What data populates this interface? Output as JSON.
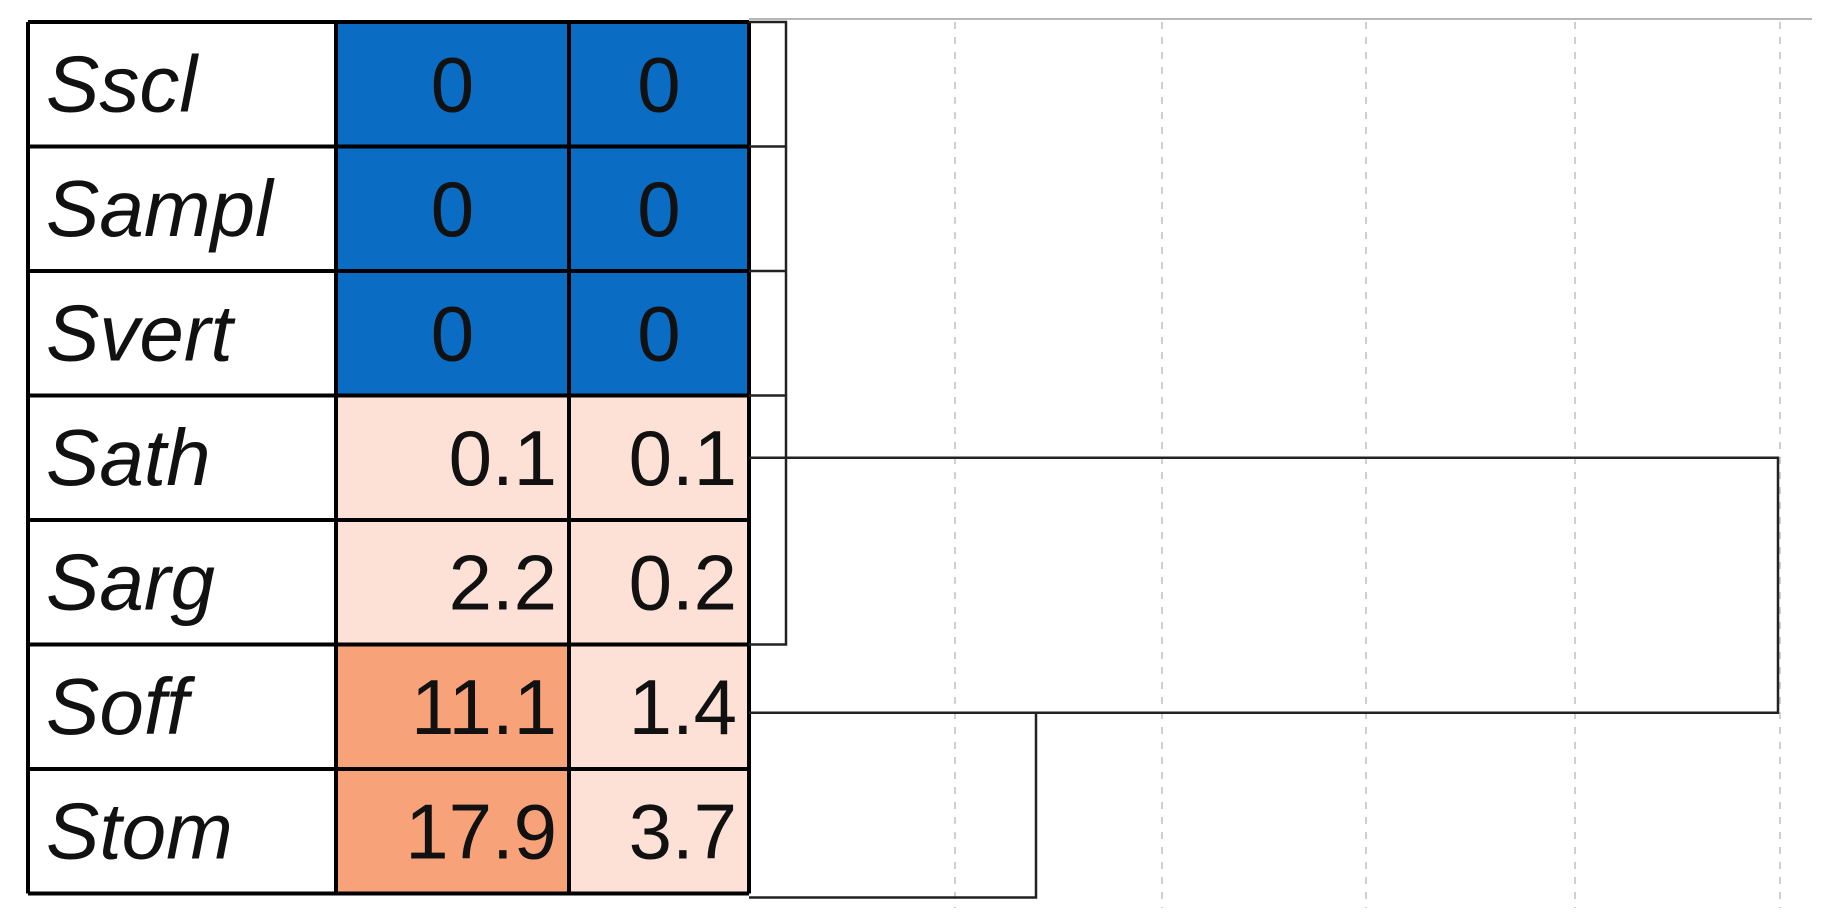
{
  "chart_data": {
    "type": "heatmap",
    "rows": [
      "Sscl",
      "Sampl",
      "Svert",
      "Sath",
      "Sarg",
      "Soff",
      "Stom"
    ],
    "columns": [
      "",
      ""
    ],
    "values": [
      [
        0,
        0
      ],
      [
        0,
        0
      ],
      [
        0,
        0
      ],
      [
        0.1,
        0.1
      ],
      [
        2.2,
        0.2
      ],
      [
        11.1,
        1.4
      ],
      [
        17.9,
        3.7
      ]
    ],
    "display_values": [
      [
        "0",
        "0"
      ],
      [
        "0",
        "0"
      ],
      [
        "0",
        "0"
      ],
      [
        "0.1",
        "0.1"
      ],
      [
        "2.2",
        "0.2"
      ],
      [
        "11.1",
        "1.4"
      ],
      [
        "17.9",
        "3.7"
      ]
    ],
    "colors": {
      "zero": "#0a6cc2",
      "low": "#fde1d6",
      "high": "#f8a27a",
      "grid_dashed": "#cfcfcf",
      "dendrogram": "#222222"
    },
    "dendrogram": {
      "orientation": "right",
      "leaf_order": [
        "Sscl",
        "Sampl",
        "Svert",
        "Sath",
        "Sarg",
        "Soff",
        "Stom"
      ],
      "grid": "dashed vertical"
    }
  }
}
